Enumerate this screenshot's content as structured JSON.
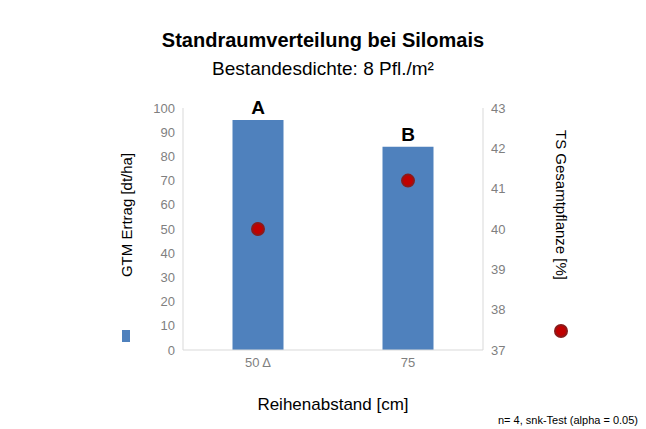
{
  "chart_data": {
    "type": "bar",
    "title": "Standraumverteilung bei Silomais",
    "subtitle": "Bestandesdichte: 8 Pfl./m²",
    "xlabel": "Reihenabstand [cm]",
    "footnote": "n= 4, snk-Test (alpha = 0.05)",
    "categories": [
      "50 Δ",
      "75"
    ],
    "series": [
      {
        "name": "GTM Ertrag [dt/ha]",
        "type": "bar",
        "color": "#4f81bd",
        "values": [
          95,
          84
        ]
      },
      {
        "name": "TS Gesamtpflanze [%]",
        "type": "scatter",
        "axis": "y2",
        "color": "#c00000",
        "marker": "circle",
        "values": [
          40.0,
          41.2
        ]
      }
    ],
    "annotations": [
      {
        "category": "50 Δ",
        "text": "A"
      },
      {
        "category": "75",
        "text": "B"
      }
    ],
    "ylim": [
      0,
      100
    ],
    "yticks": [
      0,
      10,
      20,
      30,
      40,
      50,
      60,
      70,
      80,
      90,
      100
    ],
    "y2lim": [
      37,
      43
    ],
    "y2ticks": [
      37,
      38,
      39,
      40,
      41,
      42,
      43
    ],
    "grid": false
  }
}
